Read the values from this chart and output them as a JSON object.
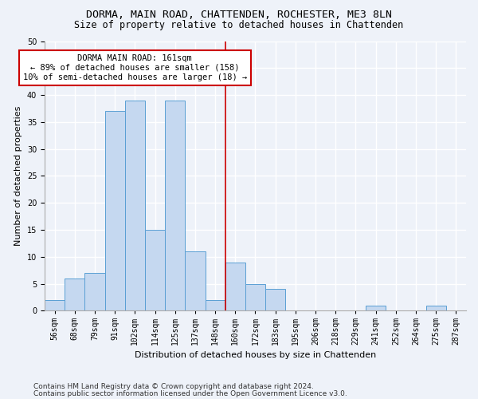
{
  "title": "DORMA, MAIN ROAD, CHATTENDEN, ROCHESTER, ME3 8LN",
  "subtitle": "Size of property relative to detached houses in Chattenden",
  "xlabel": "Distribution of detached houses by size in Chattenden",
  "ylabel": "Number of detached properties",
  "bin_labels": [
    "56sqm",
    "68sqm",
    "79sqm",
    "91sqm",
    "102sqm",
    "114sqm",
    "125sqm",
    "137sqm",
    "148sqm",
    "160sqm",
    "172sqm",
    "183sqm",
    "195sqm",
    "206sqm",
    "218sqm",
    "229sqm",
    "241sqm",
    "252sqm",
    "264sqm",
    "275sqm",
    "287sqm"
  ],
  "bar_values": [
    2,
    6,
    7,
    37,
    39,
    15,
    39,
    11,
    2,
    9,
    5,
    4,
    0,
    0,
    0,
    0,
    1,
    0,
    0,
    1,
    0
  ],
  "bar_color": "#c5d8f0",
  "bar_edge_color": "#5a9fd4",
  "vline_x": 8.5,
  "vline_color": "#cc0000",
  "annotation_title": "DORMA MAIN ROAD: 161sqm",
  "annotation_line1": "← 89% of detached houses are smaller (158)",
  "annotation_line2": "10% of semi-detached houses are larger (18) →",
  "annotation_box_color": "#ffffff",
  "annotation_box_edge_color": "#cc0000",
  "ylim": [
    0,
    50
  ],
  "yticks": [
    0,
    5,
    10,
    15,
    20,
    25,
    30,
    35,
    40,
    45,
    50
  ],
  "footer1": "Contains HM Land Registry data © Crown copyright and database right 2024.",
  "footer2": "Contains public sector information licensed under the Open Government Licence v3.0.",
  "bg_color": "#eef2f9",
  "plot_bg_color": "#eef2f9",
  "grid_color": "#ffffff",
  "title_fontsize": 9.5,
  "subtitle_fontsize": 8.5,
  "axis_label_fontsize": 8,
  "tick_fontsize": 7,
  "annotation_fontsize": 7.5,
  "footer_fontsize": 6.5
}
